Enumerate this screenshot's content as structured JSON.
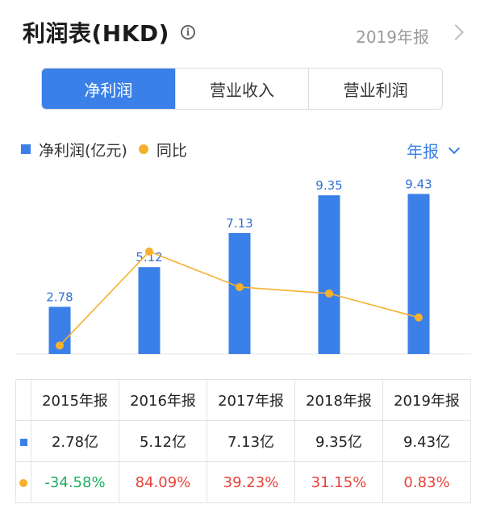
{
  "header": {
    "title": "利润表(HKD)",
    "info_icon": "info-icon",
    "period": "2019年报"
  },
  "tabs": [
    {
      "label": "净利润",
      "active": true
    },
    {
      "label": "营业收入",
      "active": false
    },
    {
      "label": "营业利润",
      "active": false
    }
  ],
  "legend": {
    "bar_label": "净利润(亿元)",
    "line_label": "同比"
  },
  "period_select": "年报",
  "colors": {
    "bar": "#3b80e8",
    "line": "#f5b12c",
    "negative": "#1fae62",
    "positive": "#e8413a"
  },
  "chart_data": {
    "type": "bar",
    "categories": [
      "2015年报",
      "2016年报",
      "2017年报",
      "2018年报",
      "2019年报"
    ],
    "series": [
      {
        "name": "净利润(亿元)",
        "type": "bar",
        "values": [
          2.78,
          5.12,
          7.13,
          9.35,
          9.43
        ]
      },
      {
        "name": "同比",
        "type": "line",
        "values": [
          -34.58,
          84.09,
          39.23,
          31.15,
          0.83
        ]
      }
    ],
    "bar_labels": [
      "2.78",
      "5.12",
      "7.13",
      "9.35",
      "9.43"
    ],
    "legend_position": "top-left"
  },
  "table": {
    "headers": [
      "2015年报",
      "2016年报",
      "2017年报",
      "2018年报",
      "2019年报"
    ],
    "net_profit": [
      "2.78亿",
      "5.12亿",
      "7.13亿",
      "9.35亿",
      "9.43亿"
    ],
    "yoy": [
      "-34.58%",
      "84.09%",
      "39.23%",
      "31.15%",
      "0.83%"
    ]
  }
}
